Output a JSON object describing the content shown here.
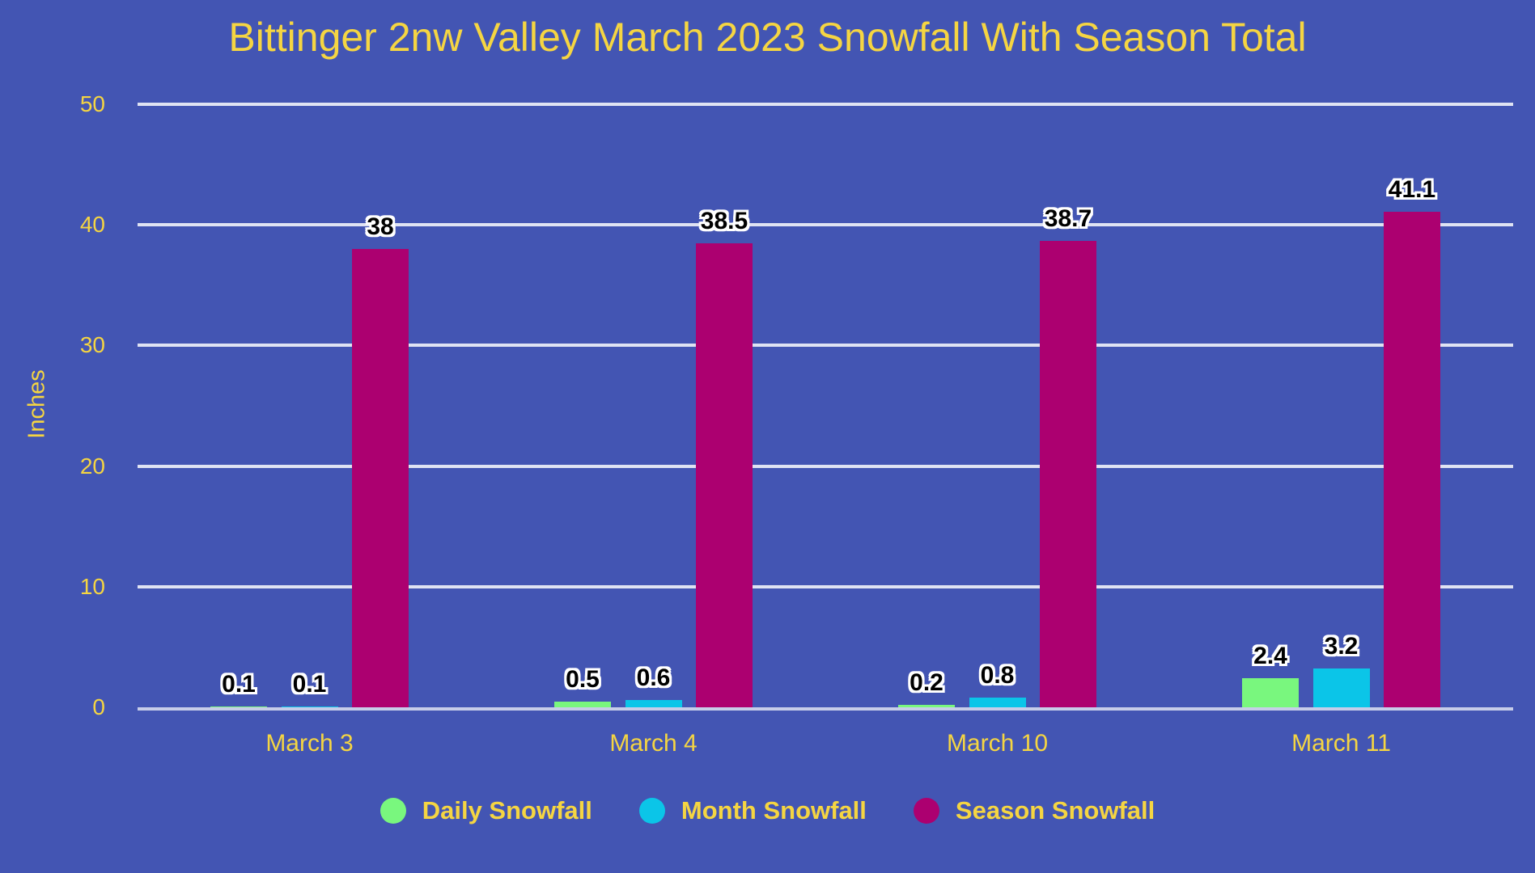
{
  "chart_data": {
    "type": "bar",
    "title": "Bittinger 2nw Valley March 2023 Snowfall With Season Total",
    "xlabel": "",
    "ylabel": "Inches",
    "categories": [
      "March 3",
      "March 4",
      "March 10",
      "March 11"
    ],
    "series": [
      {
        "name": "Daily Snowfall",
        "color": "#79f77e",
        "values": [
          0.1,
          0.5,
          0.2,
          2.4
        ]
      },
      {
        "name": "Month Snowfall",
        "color": "#0bc5e8",
        "values": [
          0.1,
          0.6,
          0.8,
          3.2
        ]
      },
      {
        "name": "Season Snowfall",
        "color": "#ac0070",
        "values": [
          38,
          38.5,
          38.7,
          41.1
        ]
      }
    ],
    "y_ticks": [
      0,
      10,
      20,
      30,
      40,
      50
    ],
    "ylim": [
      0,
      50
    ],
    "grid": true,
    "legend_position": "bottom",
    "bar_value_labels": true
  },
  "style": {
    "background": "#4355b3",
    "text_color": "#f5d542",
    "gridline_color": "#dfe3f3",
    "baseline_color": "#c7cde9",
    "value_label_color": "#000000",
    "value_label_outline": "#ffffff"
  }
}
